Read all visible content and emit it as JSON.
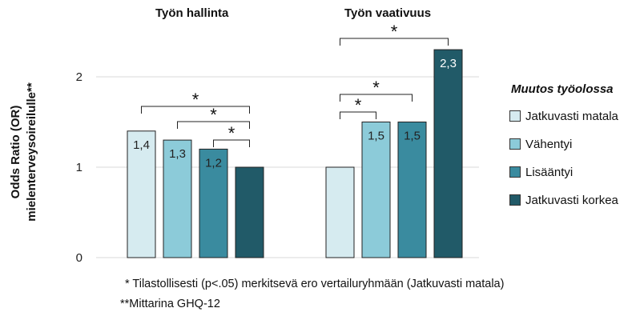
{
  "chart_data": {
    "type": "bar",
    "ylabel_line1": "Odds Ratio (OR)",
    "ylabel_line2": "mielenterveysoireilulle**",
    "ylim": [
      0,
      2.5
    ],
    "yticks": [
      0,
      1,
      2
    ],
    "grid": true,
    "groups": [
      {
        "title": "Työn hallinta",
        "values": [
          1.4,
          1.3,
          1.2,
          1.0
        ],
        "labels": [
          "1,4",
          "1,3",
          "1,2",
          ""
        ],
        "significance": [
          {
            "from": 0,
            "to": 3,
            "mark": "*"
          },
          {
            "from": 1,
            "to": 3,
            "mark": "*"
          },
          {
            "from": 2,
            "to": 3,
            "mark": "*"
          }
        ]
      },
      {
        "title": "Työn vaativuus",
        "values": [
          1.0,
          1.5,
          1.5,
          2.3
        ],
        "labels": [
          "",
          "1,5",
          "1,5",
          "2,3"
        ],
        "significance": [
          {
            "from": 0,
            "to": 1,
            "mark": "*"
          },
          {
            "from": 0,
            "to": 2,
            "mark": "*"
          },
          {
            "from": 0,
            "to": 3,
            "mark": "*"
          }
        ]
      }
    ],
    "legend": {
      "title": "Muutos työolossa",
      "position": "right",
      "items": [
        {
          "label": "Jatkuvasti matala",
          "color": "#d6ebf0"
        },
        {
          "label": "Vähentyi",
          "color": "#8ccbd9"
        },
        {
          "label": "Lisääntyi",
          "color": "#3a8b9f"
        },
        {
          "label": "Jatkuvasti korkea",
          "color": "#215a68"
        }
      ]
    },
    "footnotes": [
      "* Tilastollisesti (p<.05) merkitsevä ero vertailuryhmään (Jatkuvasti matala)",
      "**Mittarina GHQ-12"
    ]
  }
}
